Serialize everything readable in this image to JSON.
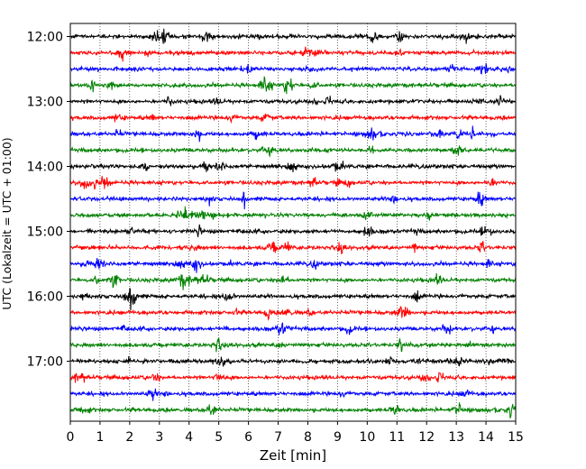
{
  "chart_data": {
    "type": "line",
    "title": "",
    "xlabel": "Zeit  [min]",
    "ylabel": "UTC (Lokalzeit = UTC + 01:00)",
    "xlim": [
      0,
      15
    ],
    "xticks": [
      "0",
      "1",
      "2",
      "3",
      "4",
      "5",
      "6",
      "7",
      "8",
      "9",
      "10",
      "11",
      "12",
      "13",
      "14",
      "15"
    ],
    "yticks": [
      "12:00",
      "13:00",
      "14:00",
      "15:00",
      "16:00",
      "17:00"
    ],
    "grid": "vertical-dotted",
    "legend": "none",
    "trace_interval_minutes": 15,
    "first_trace": "12:00",
    "colors_cycle": [
      "#000000",
      "#ff0000",
      "#0000ff",
      "#008000"
    ],
    "series": [
      {
        "start": "12:00",
        "color": "#000000"
      },
      {
        "start": "12:15",
        "color": "#ff0000"
      },
      {
        "start": "12:30",
        "color": "#0000ff"
      },
      {
        "start": "12:45",
        "color": "#008000"
      },
      {
        "start": "13:00",
        "color": "#000000"
      },
      {
        "start": "13:15",
        "color": "#ff0000"
      },
      {
        "start": "13:30",
        "color": "#0000ff"
      },
      {
        "start": "13:45",
        "color": "#008000"
      },
      {
        "start": "14:00",
        "color": "#000000"
      },
      {
        "start": "14:15",
        "color": "#ff0000"
      },
      {
        "start": "14:30",
        "color": "#0000ff"
      },
      {
        "start": "14:45",
        "color": "#008000"
      },
      {
        "start": "15:00",
        "color": "#000000"
      },
      {
        "start": "15:15",
        "color": "#ff0000"
      },
      {
        "start": "15:30",
        "color": "#0000ff"
      },
      {
        "start": "15:45",
        "color": "#008000"
      },
      {
        "start": "16:00",
        "color": "#000000"
      },
      {
        "start": "16:15",
        "color": "#ff0000"
      },
      {
        "start": "16:30",
        "color": "#0000ff"
      },
      {
        "start": "16:45",
        "color": "#008000"
      },
      {
        "start": "17:00",
        "color": "#000000"
      },
      {
        "start": "17:15",
        "color": "#ff0000"
      },
      {
        "start": "17:30",
        "color": "#0000ff"
      },
      {
        "start": "17:45",
        "color": "#008000"
      }
    ]
  }
}
